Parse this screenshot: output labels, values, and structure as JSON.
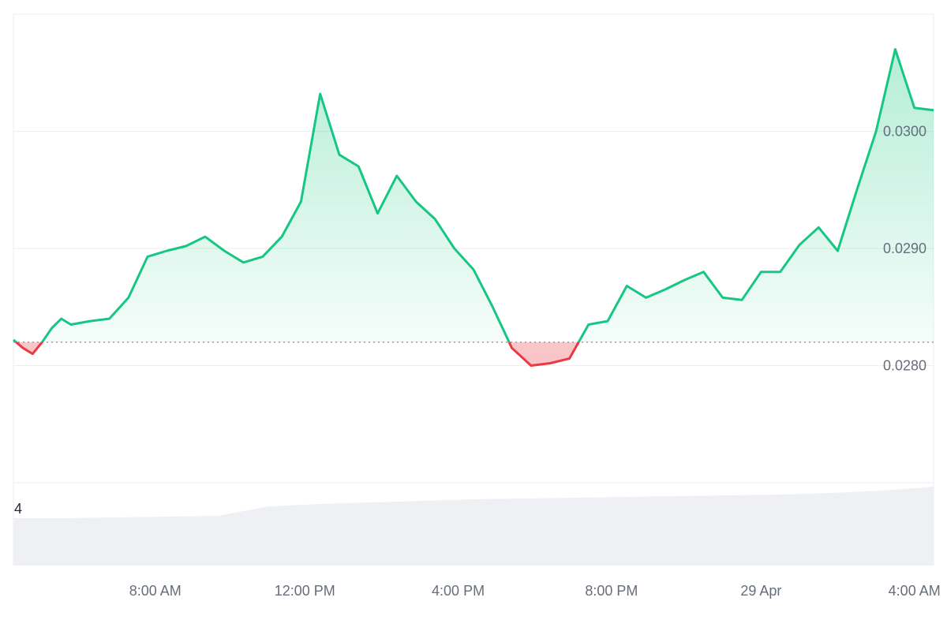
{
  "chart_data": {
    "type": "area",
    "title": "",
    "xlabel": "",
    "ylabel": "",
    "baseline": 0.0282,
    "ylim": [
      0.027,
      0.031
    ],
    "y_ticks": [
      "0.0280",
      "0.0290",
      "0.0300"
    ],
    "x_ticks": [
      "8:00 AM",
      "12:00 PM",
      "4:00 PM",
      "8:00 PM",
      "29 Apr",
      "4:00 AM"
    ],
    "grid": true,
    "legend": "none",
    "colors": {
      "up": "#16c784",
      "down": "#ea3943",
      "volume": "#eef0f4",
      "grid": "#eceef1",
      "baseline": "#8e959e"
    },
    "series": [
      {
        "x_hours": [
          0,
          0.25,
          0.5,
          0.75,
          1,
          1.25,
          1.5,
          2,
          2.5,
          3,
          3.5,
          4,
          4.5,
          5,
          5.5,
          6,
          6.5,
          7,
          7.5,
          8,
          8.5,
          9,
          9.5,
          10,
          10.5,
          11,
          11.5,
          12,
          12.5,
          13,
          13.5,
          14,
          14.5,
          15,
          15.5,
          16,
          16.5,
          17,
          17.5,
          18,
          18.5,
          19,
          19.5,
          20,
          20.5,
          21,
          21.5,
          22,
          22.5,
          23,
          23.5,
          24
        ],
        "values": [
          0.02822,
          0.02815,
          0.0281,
          0.0282,
          0.02832,
          0.0284,
          0.02835,
          0.02838,
          0.0284,
          0.02858,
          0.02893,
          0.02898,
          0.02902,
          0.0291,
          0.02898,
          0.02888,
          0.02893,
          0.0291,
          0.0294,
          0.03032,
          0.0298,
          0.0297,
          0.0293,
          0.02962,
          0.0294,
          0.02925,
          0.029,
          0.02882,
          0.0285,
          0.02815,
          0.028,
          0.02802,
          0.02806,
          0.02835,
          0.02838,
          0.02868,
          0.02858,
          0.02865,
          0.02873,
          0.0288,
          0.02858,
          0.02856,
          0.0288,
          0.0288,
          0.02903,
          0.02918,
          0.02898,
          0.0295,
          0.03,
          0.0307,
          0.0302,
          0.03018
        ]
      }
    ],
    "volume": {
      "label": "4",
      "values": [
        0.6,
        0.6,
        0.61,
        0.62,
        0.63,
        0.75,
        0.78,
        0.8,
        0.82,
        0.84,
        0.85,
        0.86,
        0.87,
        0.88,
        0.89,
        0.9,
        0.92,
        0.95,
        1.0
      ]
    }
  }
}
